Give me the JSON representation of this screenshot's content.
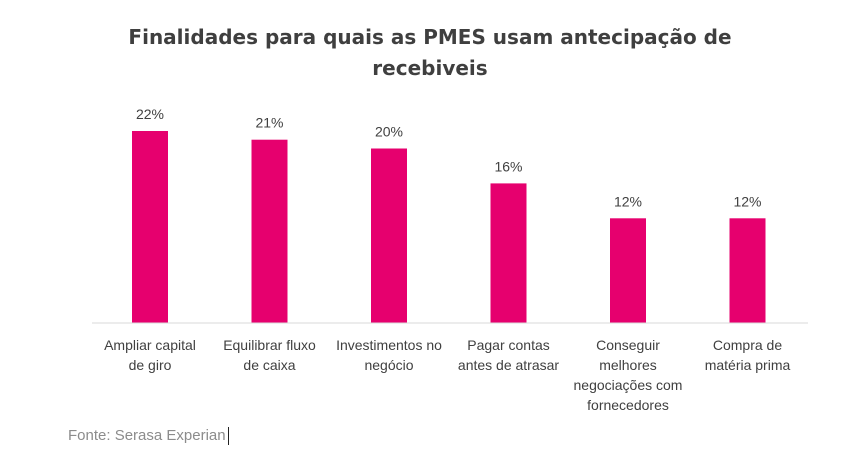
{
  "chart_data": {
    "type": "bar",
    "title": "Finalidades para quais as PMES usam antecipação de recebiveis",
    "categories": [
      "Ampliar capital\nde giro",
      "Equilibrar fluxo\nde caixa",
      "Investimentos no\nnegócio",
      "Pagar contas\nantes de atrasar",
      "Conseguir\nmelhores\nnegociações com\nfornecedores",
      "Compra de\nmatéria prima"
    ],
    "values": [
      22,
      21,
      20,
      16,
      12,
      12
    ],
    "data_labels": [
      "22%",
      "21%",
      "20%",
      "16%",
      "12%",
      "12%"
    ],
    "xlabel": "",
    "ylabel": "",
    "ylim": [
      0,
      22
    ],
    "grid": false,
    "legend": "none",
    "bar_color": "#e6006e"
  },
  "source": "Fonte: Serasa Experian"
}
